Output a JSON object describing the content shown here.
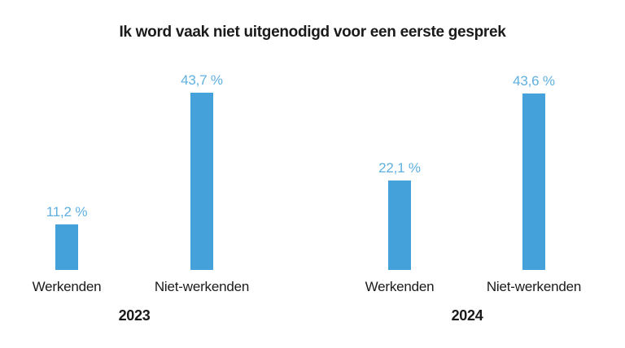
{
  "title": "Ik word vaak niet uitgenodigd voor een eerste gesprek",
  "colors": {
    "bar": "#45a1d9",
    "value_label": "#5fb0e0",
    "text": "#1a1a1a",
    "background": "#ffffff"
  },
  "chart_data": {
    "type": "bar",
    "title": "Ik word vaak niet uitgenodigd voor een eerste gesprek",
    "unit": "%",
    "ylim": [
      0,
      45
    ],
    "grid": false,
    "legend": false,
    "groups": [
      {
        "year": "2023",
        "categories": [
          "Werkenden",
          "Niet-werkenden"
        ],
        "values": [
          11.2,
          43.7
        ],
        "value_labels": [
          "11,2 %",
          "43,7 %"
        ]
      },
      {
        "year": "2024",
        "categories": [
          "Werkenden",
          "Niet-werkenden"
        ],
        "values": [
          22.1,
          43.6
        ],
        "value_labels": [
          "22,1 %",
          "43,6 %"
        ]
      }
    ]
  }
}
